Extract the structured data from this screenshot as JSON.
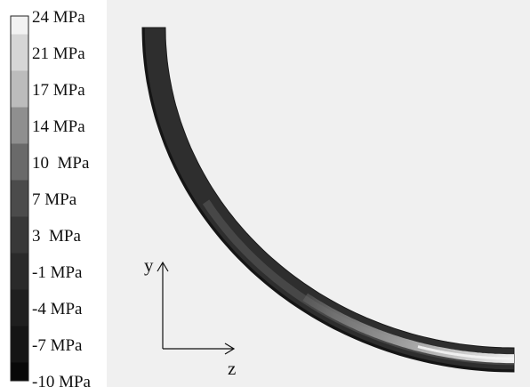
{
  "legend": {
    "levels": [
      {
        "label": "24 MPa",
        "color": "#f2f2f2"
      },
      {
        "label": "21 MPa",
        "color": "#d6d6d6"
      },
      {
        "label": "17 MPa",
        "color": "#bcbcbc"
      },
      {
        "label": "14 MPa",
        "color": "#8f8f8f"
      },
      {
        "label": "10  MPa",
        "color": "#6a6a6a"
      },
      {
        "label": "7 MPa",
        "color": "#4b4b4b"
      },
      {
        "label": "3  MPa",
        "color": "#383838"
      },
      {
        "label": "-1 MPa",
        "color": "#2a2a2a"
      },
      {
        "label": "-4 MPa",
        "color": "#1f1f1f"
      },
      {
        "label": "-7 MPa",
        "color": "#151515"
      },
      {
        "label": "-10 MPa",
        "color": "#080808"
      }
    ]
  },
  "axes": {
    "y_label": "y",
    "z_label": "z"
  },
  "colors": {
    "background_panel": "#f0f0f0",
    "arc_base": "#2e2e2e",
    "arc_outer_edge": "#1a1a1a"
  }
}
